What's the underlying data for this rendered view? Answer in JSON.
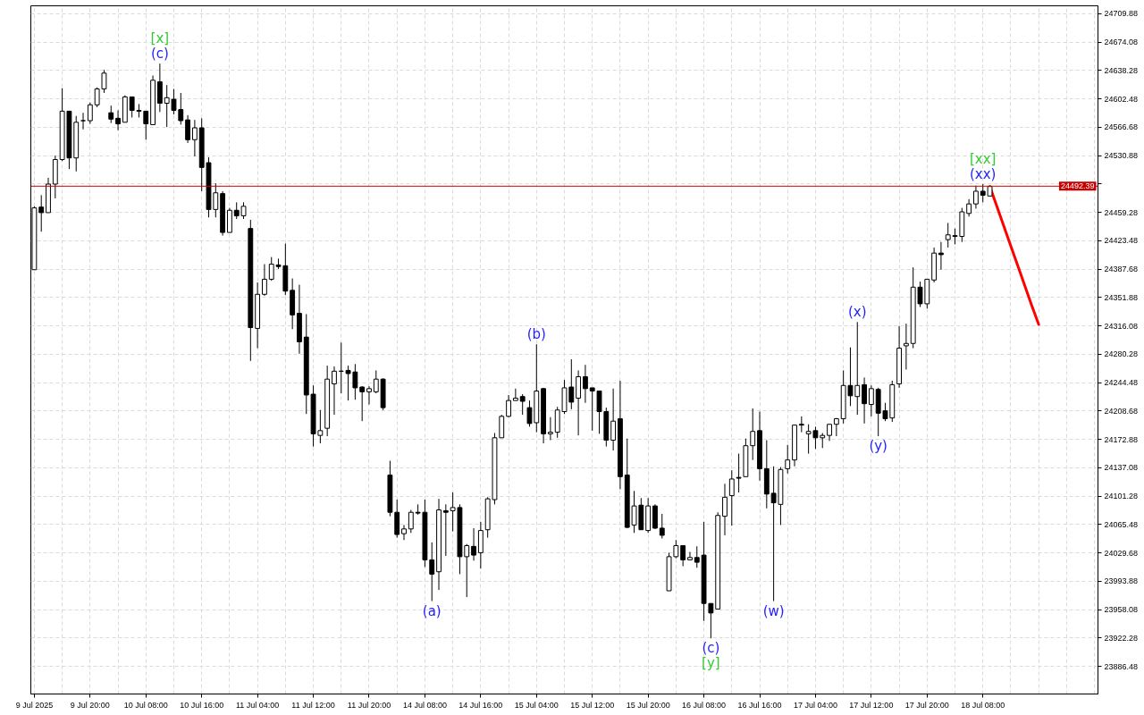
{
  "chart_data": {
    "type": "candlestick",
    "categories": [
      "9 Jul 2025",
      null,
      null,
      null,
      null,
      null,
      null,
      null,
      "9 Jul 20:00",
      null,
      null,
      null,
      null,
      null,
      null,
      null,
      "10 Jul 08:00",
      null,
      null,
      null,
      null,
      null,
      null,
      null,
      "10 Jul 16:00",
      null,
      null,
      null,
      null,
      null,
      null,
      null,
      "11 Jul 04:00",
      null,
      null,
      null,
      null,
      null,
      null,
      null,
      "11 Jul 12:00",
      null,
      null,
      null,
      null,
      null,
      null,
      null,
      "11 Jul 20:00",
      null,
      null,
      null,
      null,
      null,
      null,
      null,
      "14 Jul 08:00",
      null,
      null,
      null,
      null,
      null,
      null,
      null,
      "14 Jul 16:00",
      null,
      null,
      null,
      null,
      null,
      null,
      null,
      "15 Jul 04:00",
      null,
      null,
      null,
      null,
      null,
      null,
      null,
      "15 Jul 12:00",
      null,
      null,
      null,
      null,
      null,
      null,
      null,
      "15 Jul 20:00",
      null,
      null,
      null,
      null,
      null,
      null,
      null,
      "16 Jul 08:00",
      null,
      null,
      null,
      null,
      null,
      null,
      null,
      "16 Jul 16:00",
      null,
      null,
      null,
      null,
      null,
      null,
      null,
      "17 Jul 04:00",
      null,
      null,
      null,
      null,
      null,
      null,
      null,
      "17 Jul 12:00",
      null,
      null,
      null,
      null,
      null,
      null,
      null,
      "17 Jul 20:00",
      null,
      null,
      null,
      null,
      null,
      null,
      null,
      "18 Jul 08:00",
      null,
      null,
      null,
      null,
      null,
      null,
      null,
      null,
      null,
      null,
      null,
      null,
      null,
      null,
      null,
      null
    ],
    "ohlc": [
      [
        24387,
        24467,
        24387,
        24465
      ],
      [
        24466,
        24481,
        24435,
        24459
      ],
      [
        24459,
        24503,
        24459,
        24495
      ],
      [
        24495,
        24531,
        24477,
        24526
      ],
      [
        24526,
        24616,
        24524,
        24587
      ],
      [
        24587,
        24587,
        24514,
        24528
      ],
      [
        24528,
        24581,
        24511,
        24573
      ],
      [
        24575,
        24585,
        24564,
        24575
      ],
      [
        24575,
        24598,
        24571,
        24595
      ],
      [
        24595,
        24617,
        24592,
        24615
      ],
      [
        24615,
        24639,
        24610,
        24635
      ],
      [
        24585,
        24594,
        24572,
        24577
      ],
      [
        24578,
        24588,
        24563,
        24571
      ],
      [
        24573,
        24607,
        24573,
        24605
      ],
      [
        24605,
        24605,
        24579,
        24588
      ],
      [
        24588,
        24596,
        24579,
        24587
      ],
      [
        24587,
        24587,
        24551,
        24571
      ],
      [
        24570,
        24632,
        24570,
        24626
      ],
      [
        24624,
        24647,
        24586,
        24597
      ],
      [
        24597,
        24620,
        24567,
        24604
      ],
      [
        24602,
        24615,
        24583,
        24588
      ],
      [
        24589,
        24610,
        24570,
        24575
      ],
      [
        24576,
        24582,
        24547,
        24551
      ],
      [
        24551,
        24576,
        24530,
        24566
      ],
      [
        24566,
        24578,
        24486,
        24516
      ],
      [
        24522,
        24529,
        24453,
        24463
      ],
      [
        24463,
        24496,
        24453,
        24484
      ],
      [
        24483,
        24486,
        24430,
        24434
      ],
      [
        24434,
        24465,
        24434,
        24462
      ],
      [
        24462,
        24472,
        24451,
        24455
      ],
      [
        24455,
        24472,
        24451,
        24467
      ],
      [
        24439,
        24450,
        24272,
        24314
      ],
      [
        24313,
        24371,
        24288,
        24356
      ],
      [
        24356,
        24394,
        24354,
        24375
      ],
      [
        24375,
        24403,
        24373,
        24394
      ],
      [
        24393,
        24401,
        24388,
        24391
      ],
      [
        24392,
        24420,
        24355,
        24360
      ],
      [
        24361,
        24376,
        24312,
        24330
      ],
      [
        24332,
        24368,
        24281,
        24296
      ],
      [
        24302,
        24331,
        24205,
        24229
      ],
      [
        24230,
        24241,
        24164,
        24180
      ],
      [
        24178,
        24210,
        24168,
        24184
      ],
      [
        24187,
        24266,
        24177,
        24249
      ],
      [
        24243,
        24265,
        24204,
        24259
      ],
      [
        24259,
        24295,
        24231,
        24259
      ],
      [
        24260,
        24266,
        24222,
        24256
      ],
      [
        24258,
        24268,
        24223,
        24238
      ],
      [
        24239,
        24240,
        24196,
        24233
      ],
      [
        24233,
        24240,
        24217,
        24237
      ],
      [
        24233,
        24260,
        24231,
        24249
      ],
      [
        24249,
        24250,
        24210,
        24213
      ],
      [
        24128,
        24146,
        24076,
        24081
      ],
      [
        24081,
        24097,
        24049,
        24053
      ],
      [
        24054,
        24065,
        24046,
        24060
      ],
      [
        24060,
        24084,
        24055,
        24081
      ],
      [
        24081,
        24091,
        24078,
        24080
      ],
      [
        24081,
        24097,
        24012,
        24021
      ],
      [
        24021,
        24043,
        23969,
        24003
      ],
      [
        24006,
        24098,
        23983,
        24084
      ],
      [
        24083,
        24091,
        24026,
        24081
      ],
      [
        24083,
        24106,
        24057,
        24087
      ],
      [
        24087,
        24091,
        24003,
        24025
      ],
      [
        24025,
        24041,
        23974,
        24039
      ],
      [
        24038,
        24061,
        24020,
        24027
      ],
      [
        24030,
        24069,
        24010,
        24058
      ],
      [
        24059,
        24100,
        24049,
        24098
      ],
      [
        24097,
        24181,
        24091,
        24175
      ],
      [
        24175,
        24204,
        24175,
        24202
      ],
      [
        24202,
        24229,
        24201,
        24222
      ],
      [
        24222,
        24237,
        24222,
        24225
      ],
      [
        24227,
        24230,
        24204,
        24221
      ],
      [
        24213,
        24222,
        24189,
        24193
      ],
      [
        24194,
        24293,
        24182,
        24234
      ],
      [
        24237,
        24238,
        24168,
        24180
      ],
      [
        24180,
        24201,
        24172,
        24182
      ],
      [
        24182,
        24214,
        24175,
        24210
      ],
      [
        24208,
        24248,
        24205,
        24238
      ],
      [
        24239,
        24274,
        24211,
        24220
      ],
      [
        24225,
        24260,
        24178,
        24252
      ],
      [
        24252,
        24267,
        24219,
        24237
      ],
      [
        24238,
        24238,
        24184,
        24234
      ],
      [
        24234,
        24234,
        24180,
        24208
      ],
      [
        24208,
        24213,
        24164,
        24172
      ],
      [
        24172,
        24237,
        24159,
        24196
      ],
      [
        24199,
        24247,
        24110,
        24126
      ],
      [
        24128,
        24174,
        24061,
        24062
      ],
      [
        24065,
        24108,
        24055,
        24089
      ],
      [
        24090,
        24099,
        24059,
        24059
      ],
      [
        24058,
        24099,
        24055,
        24089
      ],
      [
        24089,
        24091,
        24060,
        24061
      ],
      [
        24061,
        24079,
        24048,
        24052
      ],
      [
        23982,
        24030,
        23982,
        24025
      ],
      [
        24025,
        24046,
        24023,
        24039
      ],
      [
        24039,
        24039,
        24013,
        24021
      ],
      [
        24021,
        24031,
        24021,
        24024
      ],
      [
        24024,
        24038,
        24011,
        24018
      ],
      [
        24027,
        24069,
        23944,
        23966
      ],
      [
        23966,
        23966,
        23922,
        23954
      ],
      [
        23959,
        24081,
        23959,
        24077
      ],
      [
        24076,
        24117,
        24052,
        24100
      ],
      [
        24102,
        24134,
        24064,
        24123
      ],
      [
        24125,
        24155,
        24106,
        24124
      ],
      [
        24126,
        24174,
        24126,
        24165
      ],
      [
        24165,
        24212,
        24147,
        24183
      ],
      [
        24184,
        24208,
        24121,
        24136
      ],
      [
        24136,
        24172,
        24086,
        24104
      ],
      [
        24105,
        24139,
        23969,
        24093
      ],
      [
        24091,
        24138,
        24065,
        24135
      ],
      [
        24136,
        24166,
        24130,
        24147
      ],
      [
        24147,
        24191,
        24139,
        24191
      ],
      [
        24192,
        24202,
        24182,
        24191
      ],
      [
        24180,
        24192,
        24155,
        24183
      ],
      [
        24184,
        24189,
        24161,
        24175
      ],
      [
        24175,
        24181,
        24162,
        24178
      ],
      [
        24178,
        24192,
        24171,
        24192
      ],
      [
        24192,
        24200,
        24177,
        24199
      ],
      [
        24199,
        24260,
        24193,
        24241
      ],
      [
        24241,
        24289,
        24215,
        24228
      ],
      [
        24227,
        24321,
        24204,
        24241
      ],
      [
        24242,
        24251,
        24193,
        24218
      ],
      [
        24217,
        24241,
        24202,
        24237
      ],
      [
        24236,
        24238,
        24177,
        24206
      ],
      [
        24209,
        24219,
        24196,
        24199
      ],
      [
        24200,
        24247,
        24195,
        24242
      ],
      [
        24243,
        24316,
        24238,
        24288
      ],
      [
        24291,
        24319,
        24261,
        24294
      ],
      [
        24294,
        24390,
        24288,
        24365
      ],
      [
        24365,
        24372,
        24340,
        24344
      ],
      [
        24344,
        24375,
        24338,
        24375
      ],
      [
        24374,
        24415,
        24371,
        24408
      ],
      [
        24408,
        24422,
        24387,
        24406
      ],
      [
        24425,
        24446,
        24415,
        24431
      ],
      [
        24430,
        24439,
        24419,
        24429
      ],
      [
        24429,
        24465,
        24422,
        24460
      ],
      [
        24458,
        24476,
        24454,
        24470
      ],
      [
        24470,
        24493,
        24464,
        24486
      ],
      [
        24486,
        24495,
        24472,
        24481
      ],
      [
        24480,
        24493,
        24480,
        24492
      ],
      null,
      null,
      null,
      null,
      null,
      null,
      null,
      null,
      null,
      null,
      null,
      null,
      null,
      null,
      null
    ],
    "colors": [
      "#ffffff",
      "#000000",
      "#ffffff",
      "#ffffff",
      "#ffffff",
      "#000000",
      "#ffffff",
      "#000000",
      "#ffffff",
      "#ffffff",
      "#ffffff",
      "#000000",
      "#000000",
      "#ffffff",
      "#000000",
      "#000000",
      "#000000",
      "#ffffff",
      "#000000",
      "#ffffff",
      "#000000",
      "#000000",
      "#000000",
      "#ffffff",
      "#000000",
      "#000000",
      "#ffffff",
      "#000000",
      "#ffffff",
      "#000000",
      "#ffffff",
      "#000000",
      "#ffffff",
      "#ffffff",
      "#ffffff",
      "#000000",
      "#000000",
      "#000000",
      "#000000",
      "#000000",
      "#000000",
      "#ffffff",
      "#ffffff",
      "#ffffff",
      "#000000",
      "#000000",
      "#000000",
      "#000000",
      "#ffffff",
      "#ffffff",
      "#000000",
      "#000000",
      "#000000",
      "#ffffff",
      "#ffffff",
      "#000000",
      "#000000",
      "#000000",
      "#ffffff",
      "#000000",
      "#ffffff",
      "#000000",
      "#ffffff",
      "#000000",
      "#ffffff",
      "#ffffff",
      "#ffffff",
      "#ffffff",
      "#ffffff",
      "#ffffff",
      "#000000",
      "#000000",
      "#ffffff",
      "#000000",
      "#ffffff",
      "#ffffff",
      "#ffffff",
      "#000000",
      "#ffffff",
      "#000000",
      "#000000",
      "#000000",
      "#000000",
      "#ffffff",
      "#000000",
      "#000000",
      "#ffffff",
      "#000000",
      "#ffffff",
      "#000000",
      "#000000",
      "#ffffff",
      "#ffffff",
      "#000000",
      "#ffffff",
      "#000000",
      "#000000",
      "#000000",
      "#ffffff",
      "#ffffff",
      "#ffffff",
      "#000000",
      "#ffffff",
      "#ffffff",
      "#000000",
      "#000000",
      "#000000",
      "#ffffff",
      "#ffffff",
      "#ffffff",
      "#000000",
      "#ffffff",
      "#000000",
      "#ffffff",
      "#ffffff",
      "#ffffff",
      "#ffffff",
      "#000000",
      "#ffffff",
      "#000000",
      "#ffffff",
      "#000000",
      "#000000",
      "#ffffff",
      "#ffffff",
      "#ffffff",
      "#ffffff",
      "#000000",
      "#ffffff",
      "#ffffff",
      "#000000",
      "#ffffff",
      "#000000",
      "#ffffff",
      "#ffffff",
      "#ffffff",
      "#000000",
      "#ffffff",
      null,
      null,
      null,
      null,
      null,
      null,
      null,
      null,
      null,
      null,
      null,
      null,
      null,
      null,
      null
    ],
    "color": "#000000",
    "series": [
      {
        "type": "line",
        "color": "#ff0000",
        "values": [
          null,
          null,
          null,
          null,
          null,
          null,
          null,
          null,
          null,
          null,
          null,
          null,
          null,
          null,
          null,
          null,
          null,
          null,
          null,
          null,
          null,
          null,
          null,
          null,
          null,
          null,
          null,
          null,
          null,
          null,
          null,
          null,
          null,
          null,
          null,
          null,
          null,
          null,
          null,
          null,
          null,
          null,
          null,
          null,
          null,
          null,
          null,
          null,
          null,
          null,
          null,
          null,
          null,
          null,
          null,
          null,
          null,
          null,
          null,
          null,
          null,
          null,
          null,
          null,
          null,
          null,
          null,
          null,
          null,
          null,
          null,
          null,
          null,
          null,
          null,
          null,
          null,
          null,
          null,
          null,
          null,
          null,
          null,
          null,
          null,
          null,
          null,
          null,
          null,
          null,
          null,
          null,
          null,
          null,
          null,
          null,
          null,
          null,
          null,
          null,
          null,
          null,
          null,
          null,
          null,
          null,
          null,
          null,
          null,
          null,
          null,
          null,
          null,
          null,
          null,
          null,
          null,
          null,
          null,
          null,
          null,
          null,
          null,
          null,
          null,
          null,
          null,
          null,
          null,
          null,
          null,
          null,
          null,
          null,
          null,
          null,
          null,
          24492,
          24467,
          24442,
          24417,
          24392,
          24367,
          24342,
          24318,
          null,
          null,
          null,
          null,
          null,
          null,
          null,
          null
        ]
      }
    ],
    "ylim": [
      23851.8,
      24719.9
    ],
    "yticks": [
      24709.88,
      24674.08,
      24638.28,
      24602.48,
      24566.68,
      24530.88,
      {
        "value": 24495.08,
        "label": null
      },
      24459.28,
      24423.48,
      24387.68,
      24351.88,
      24316.08,
      24280.28,
      24244.48,
      24208.68,
      24172.88,
      24137.08,
      24101.28,
      24065.48,
      24029.68,
      23993.88,
      23958.08,
      23922.28,
      23886.48
    ],
    "grid": true,
    "ref_lines": [
      {
        "axis": "y",
        "value": 24492.39,
        "label": "24492.39",
        "color": "#c80000"
      }
    ],
    "annotations": [
      {
        "text": "(c)",
        "y": 24647
      },
      {
        "text": "[x]",
        "y": 24647
      },
      {
        "text": "(a)",
        "y": 23969
      },
      {
        "text": "(b)",
        "y": 24293
      },
      {
        "text": "(c)",
        "y": 23922
      },
      {
        "text": "[y]",
        "y": 23922
      },
      {
        "text": "(w)",
        "y": 23969
      },
      {
        "text": "(x)",
        "y": 24321
      },
      {
        "text": "(y)",
        "y": 24177
      },
      {
        "text": "(xx)",
        "y": 24495
      },
      {
        "text": "[xx]",
        "y": 24495
      }
    ]
  }
}
